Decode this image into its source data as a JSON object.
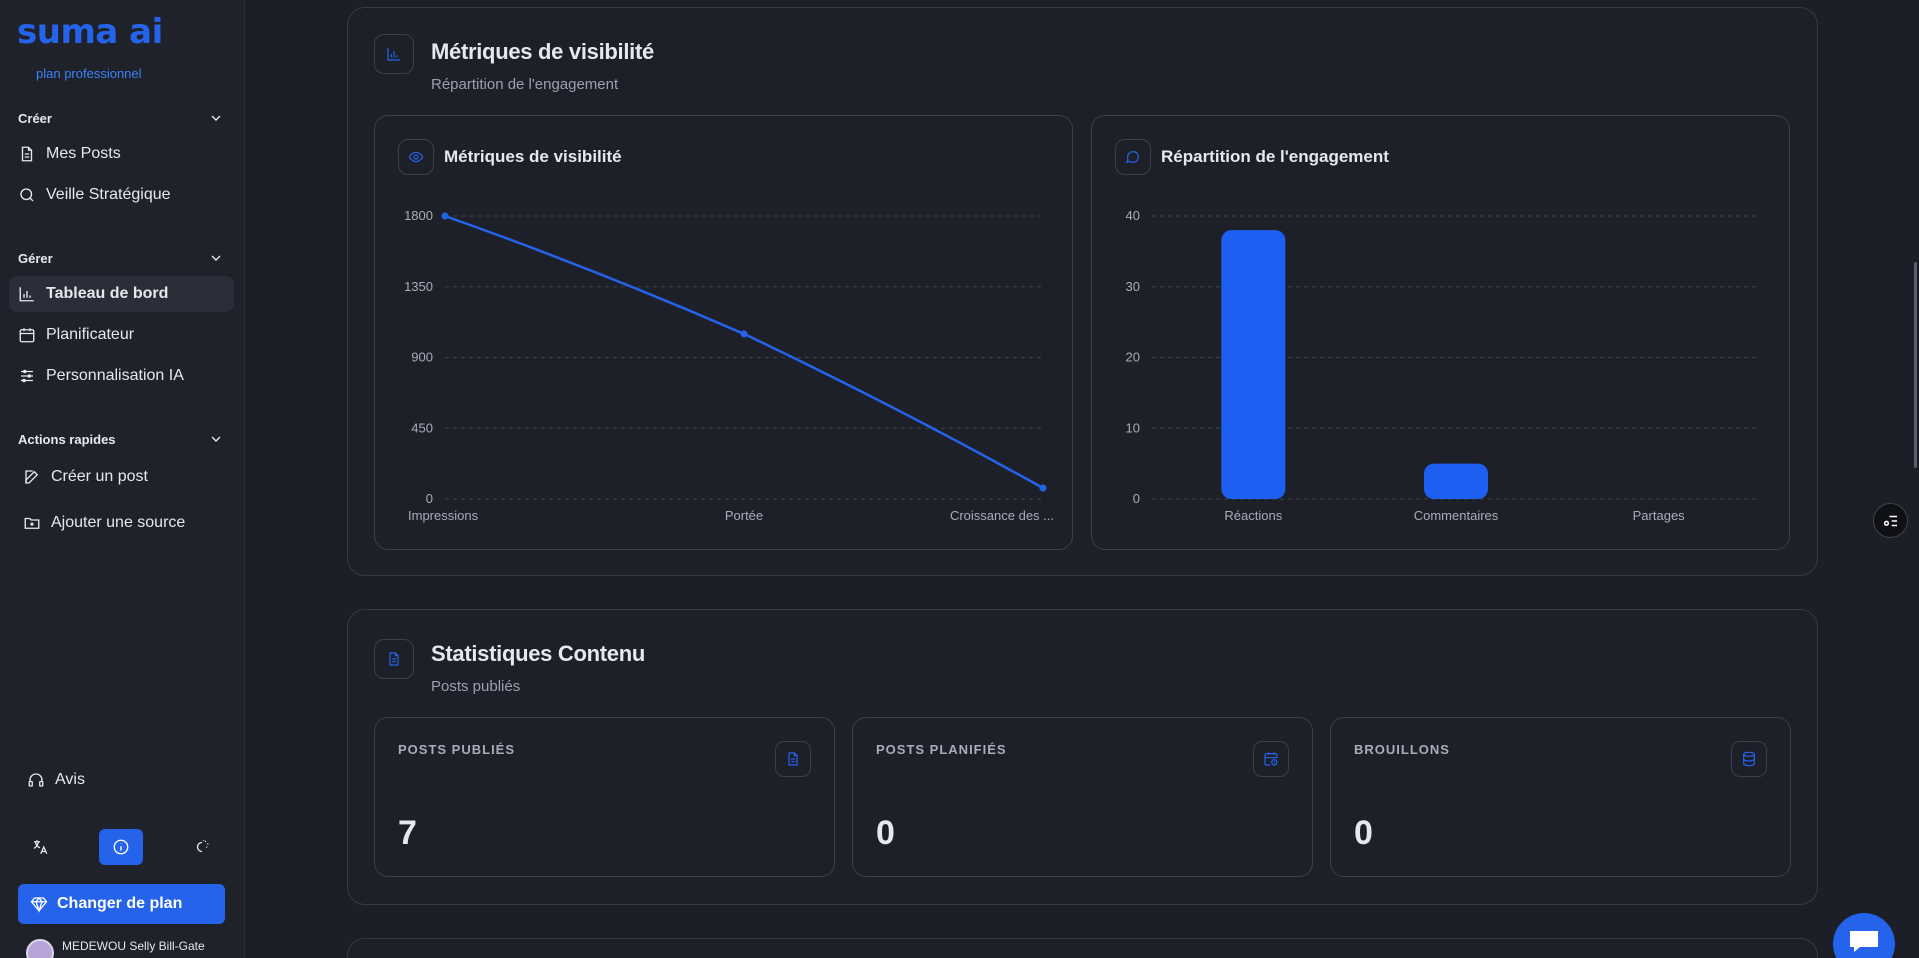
{
  "brand": {
    "logo": "suma ai",
    "plan": "plan professionnel"
  },
  "sidebar": {
    "sections": [
      {
        "title": "Créer",
        "items": [
          {
            "label": "Mes Posts",
            "icon": "document-icon"
          },
          {
            "label": "Veille Stratégique",
            "icon": "search-icon"
          }
        ]
      },
      {
        "title": "Gérer",
        "items": [
          {
            "label": "Tableau de bord",
            "icon": "chart-icon",
            "active": true
          },
          {
            "label": "Planificateur",
            "icon": "calendar-icon"
          },
          {
            "label": "Personnalisation IA",
            "icon": "sliders-icon"
          }
        ]
      },
      {
        "title": "Actions rapides",
        "items": [
          {
            "label": "Créer un post",
            "icon": "edit-icon"
          },
          {
            "label": "Ajouter une source",
            "icon": "folder-plus-icon"
          }
        ]
      }
    ],
    "avis": "Avis",
    "change_plan": "Changer de plan",
    "user_name": "MEDEWOU Selly Bill-Gate"
  },
  "visibility_panel": {
    "title": "Métriques de visibilité",
    "subtitle": "Répartition de l'engagement"
  },
  "line_card": {
    "title": "Métriques de visibilité"
  },
  "bar_card": {
    "title": "Répartition de l'engagement"
  },
  "chart_data": [
    {
      "type": "line",
      "title": "Métriques de visibilité",
      "categories": [
        "Impressions",
        "Portée",
        "Croissance des ..."
      ],
      "values": [
        1800,
        1050,
        70
      ],
      "yticks": [
        "0",
        "450",
        "900",
        "1350",
        "1800"
      ],
      "ylim": [
        0,
        1800
      ],
      "grid": true,
      "color": "#2563eb"
    },
    {
      "type": "bar",
      "title": "Répartition de l'engagement",
      "categories": [
        "Réactions",
        "Commentaires",
        "Partages"
      ],
      "values": [
        38,
        5,
        0
      ],
      "yticks": [
        "0",
        "10",
        "20",
        "30",
        "40"
      ],
      "ylim": [
        0,
        40
      ],
      "grid": true,
      "color": "#1d5ff0"
    }
  ],
  "content_panel": {
    "title": "Statistiques Contenu",
    "subtitle": "Posts publiés",
    "stats": [
      {
        "label": "POSTS PUBLIÉS",
        "value": "7",
        "icon": "document-icon"
      },
      {
        "label": "POSTS PLANIFIÉS",
        "value": "0",
        "icon": "calendar-clock-icon"
      },
      {
        "label": "BROUILLONS",
        "value": "0",
        "icon": "database-icon"
      }
    ]
  },
  "colors": {
    "accent": "#2563eb",
    "background": "#1c1f27"
  }
}
